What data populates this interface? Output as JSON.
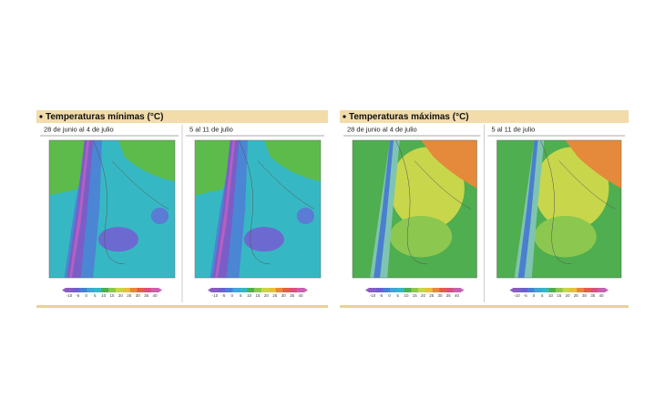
{
  "panels": [
    {
      "title": "Temperaturas mínimas (°C)",
      "kind": "min",
      "maps": [
        {
          "period": "28 de junio al 4 de julio"
        },
        {
          "period": "5 al 11 de julio"
        }
      ],
      "scale": [
        "-10",
        "-5",
        "0",
        "5",
        "10",
        "15",
        "20",
        "25",
        "30",
        "35",
        "40"
      ]
    },
    {
      "title": "Temperaturas máximas (°C)",
      "kind": "max",
      "maps": [
        {
          "period": "28 de junio al 4 de julio"
        },
        {
          "period": "5 al 11 de julio"
        }
      ],
      "scale": [
        "-10",
        "-5",
        "0",
        "5",
        "10",
        "15",
        "20",
        "25",
        "30",
        "35",
        "40"
      ]
    }
  ]
}
